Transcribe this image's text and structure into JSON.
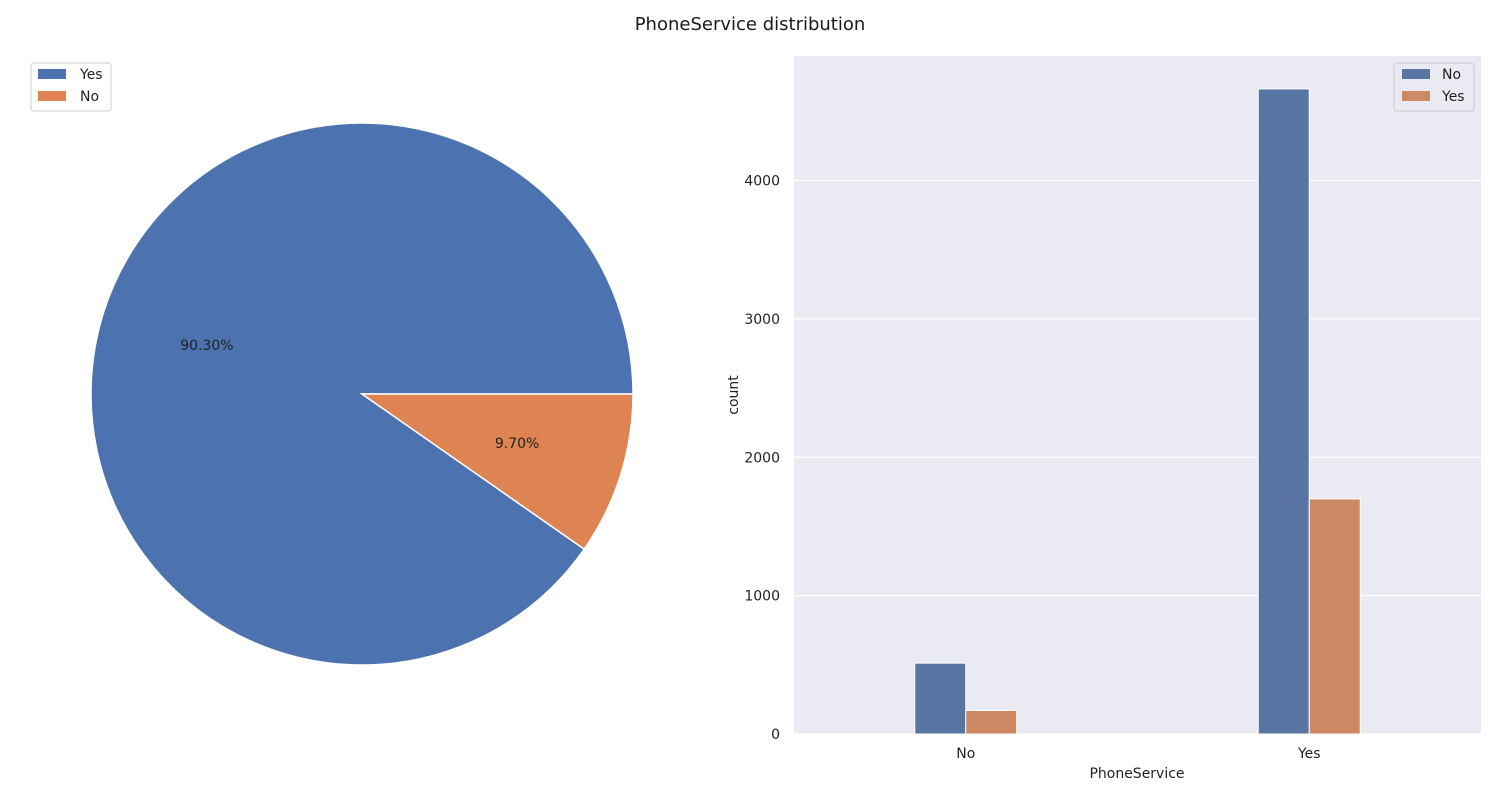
{
  "figure": {
    "title": "PhoneService distribution"
  },
  "colors": {
    "blue": "#4c72b0",
    "orange": "#dd8452",
    "blue_bar": "#5875a4",
    "orange_bar": "#cc8963",
    "axes_bg": "#eaeaf2",
    "grid": "#ffffff"
  },
  "chart_data": [
    {
      "type": "pie",
      "labels": [
        "Yes",
        "No"
      ],
      "values": [
        90.3,
        9.7
      ],
      "autopct_labels": [
        "90.30%",
        "9.70%"
      ],
      "legend": {
        "entries": [
          "Yes",
          "No"
        ],
        "placement": "upper-left"
      }
    },
    {
      "type": "bar",
      "xlabel": "PhoneService",
      "ylabel": "count",
      "categories": [
        "No",
        "Yes"
      ],
      "series": [
        {
          "name": "No",
          "values": [
            512,
            4662
          ]
        },
        {
          "name": "Yes",
          "values": [
            170,
            1699
          ]
        }
      ],
      "ylim": [
        0,
        4900
      ],
      "yticks": [
        0,
        1000,
        2000,
        3000,
        4000
      ],
      "grid": true,
      "legend": {
        "entries": [
          "No",
          "Yes"
        ],
        "placement": "upper-right"
      }
    }
  ]
}
